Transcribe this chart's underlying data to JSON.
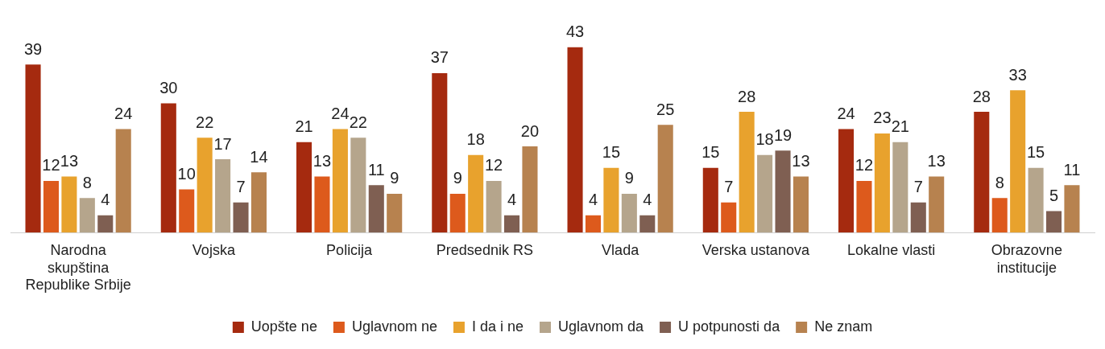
{
  "chart_data": {
    "type": "bar",
    "categories": [
      "Narodna skupština Republike Srbije",
      "Vojska",
      "Policija",
      "Predsednik RS",
      "Vlada",
      "Verska ustanova",
      "Lokalne vlasti",
      "Obrazovne institucije"
    ],
    "series": [
      {
        "name": "Uopšte ne",
        "color": "#a52a0f",
        "values": [
          39,
          30,
          21,
          37,
          43,
          15,
          24,
          28
        ]
      },
      {
        "name": "Uglavnom ne",
        "color": "#dd5a1c",
        "values": [
          12,
          10,
          13,
          9,
          4,
          7,
          12,
          8
        ]
      },
      {
        "name": "I da i ne",
        "color": "#e8a22d",
        "values": [
          13,
          22,
          24,
          18,
          15,
          28,
          23,
          33
        ]
      },
      {
        "name": "Uglavnom da",
        "color": "#b5a58c",
        "values": [
          8,
          17,
          22,
          12,
          9,
          18,
          21,
          15
        ]
      },
      {
        "name": "U potpunosti da",
        "color": "#7f5f52",
        "values": [
          4,
          7,
          11,
          4,
          4,
          19,
          7,
          5
        ]
      },
      {
        "name": "Ne znam",
        "color": "#b7824f",
        "values": [
          24,
          14,
          9,
          20,
          25,
          13,
          13,
          11
        ]
      }
    ],
    "data_labels": true,
    "legend": "bottom",
    "grid": false,
    "tick_labels": "x"
  }
}
